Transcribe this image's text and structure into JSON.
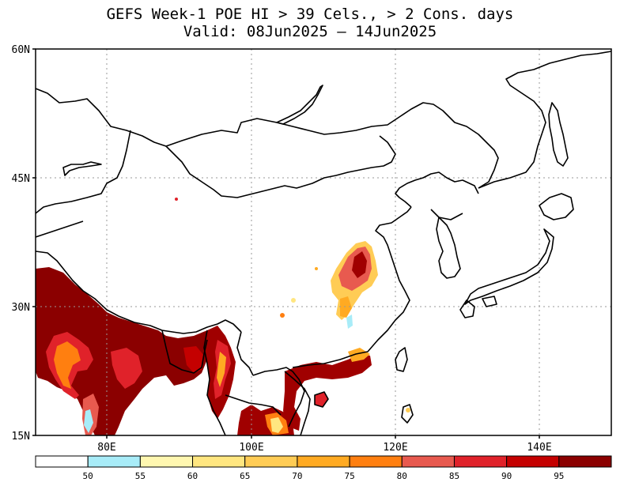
{
  "map": {
    "title_line1": "GEFS Week-1 POE HI > 39 Cels., > 2 Cons. days",
    "title_line2": "Valid: 08Jun2025 — 14Jun2025",
    "lat_labels": [
      "60N",
      "45N",
      "30N",
      "15N"
    ],
    "lon_labels": [
      "80E",
      "100E",
      "120E",
      "140E"
    ],
    "colors": {
      "c50": "#a8ecf8",
      "c55": "#fff7b0",
      "c60": "#ffe680",
      "c65": "#ffcc55",
      "c70": "#ffaa22",
      "c75": "#ff7f10",
      "c80": "#e85a4f",
      "c85": "#e0222a",
      "c90": "#c40000",
      "c95": "#a00000",
      "c100": "#8b0000",
      "border": "#000000",
      "grid": "#9a9a9a"
    }
  },
  "colorbar": {
    "ticks": [
      "50",
      "55",
      "60",
      "65",
      "70",
      "75",
      "80",
      "85",
      "90",
      "95"
    ],
    "colors": [
      "#ffffff",
      "#a8ecf8",
      "#fff7b0",
      "#ffe680",
      "#ffcc55",
      "#ffaa22",
      "#ff7f10",
      "#e85a4f",
      "#e0222a",
      "#c40000",
      "#8b0000"
    ]
  }
}
